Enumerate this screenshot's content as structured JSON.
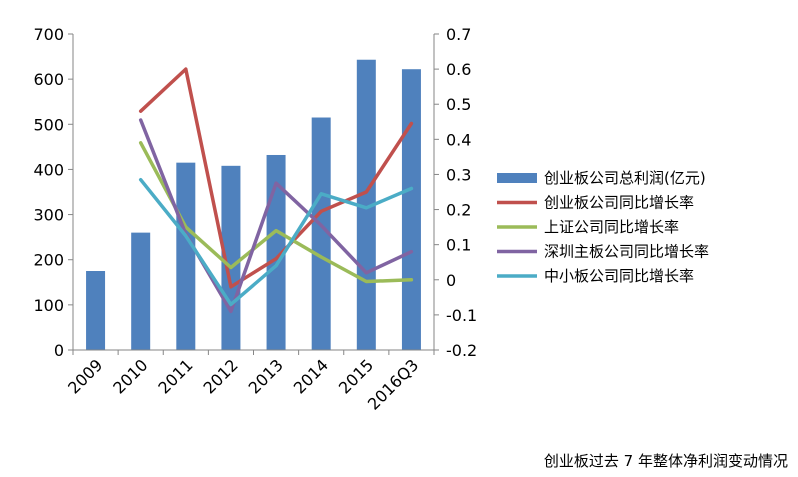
{
  "caption": "创业板过去 7 年整体净利润变动情况",
  "chart_data": {
    "type": "bar",
    "categories": [
      "2009",
      "2010",
      "2011",
      "2012",
      "2013",
      "2014",
      "2015",
      "2016Q3"
    ],
    "y_left": {
      "min": 0,
      "max": 700,
      "ticks": [
        "0",
        "100",
        "200",
        "300",
        "400",
        "500",
        "600",
        "700"
      ]
    },
    "y_right": {
      "min": -0.2,
      "max": 0.7,
      "ticks": [
        "-0.2",
        "-0.1",
        "0",
        "0.1",
        "0.2",
        "0.3",
        "0.4",
        "0.5",
        "0.6",
        "0.7"
      ]
    },
    "bars": {
      "name": "创业板公司总利润(亿元)",
      "color": "#4f81bd",
      "values": [
        175,
        260,
        415,
        408,
        432,
        515,
        643,
        622
      ]
    },
    "lines": [
      {
        "name": "创业板公司同比增长率",
        "color": "#c0504d",
        "start_index": 1,
        "values": [
          0.48,
          0.6,
          -0.02,
          0.06,
          0.195,
          0.25,
          0.445
        ]
      },
      {
        "name": "上证公司同比增长率",
        "color": "#9bbb59",
        "start_index": 1,
        "values": [
          0.39,
          0.15,
          0.035,
          0.14,
          0.065,
          -0.005,
          0.0
        ]
      },
      {
        "name": "深圳主板公司同比增长率",
        "color": "#8064a2",
        "start_index": 1,
        "values": [
          0.455,
          0.13,
          -0.09,
          0.275,
          0.155,
          0.02,
          0.08
        ]
      },
      {
        "name": "中小板公司同比增长率",
        "color": "#4bacc6",
        "start_index": 1,
        "values": [
          0.285,
          0.125,
          -0.07,
          0.04,
          0.245,
          0.205,
          0.26
        ]
      }
    ],
    "legend": "right",
    "grid": false
  }
}
